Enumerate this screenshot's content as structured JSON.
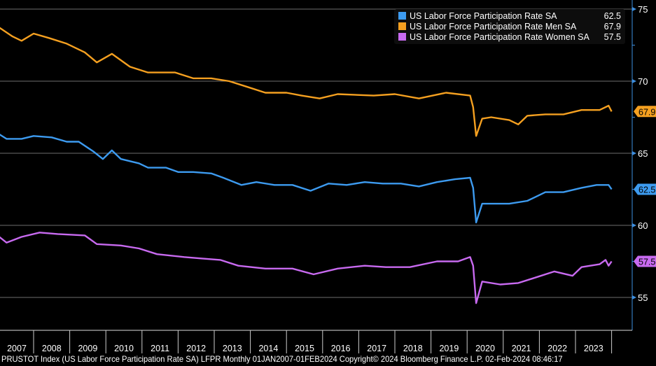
{
  "chart_data": {
    "type": "line",
    "title": "",
    "xlabel": "",
    "ylabel": "",
    "ylim": [
      52.8,
      75.6
    ],
    "y_ticks": [
      55,
      60,
      65,
      70,
      75
    ],
    "y_axis_side": "right",
    "x_tick_labels": [
      "2007",
      "2008",
      "2009",
      "2010",
      "2011",
      "2012",
      "2013",
      "2014",
      "2015",
      "2016",
      "2017",
      "2018",
      "2019",
      "2020",
      "2021",
      "2022",
      "2023"
    ],
    "grid": true,
    "legend_position": "top-right",
    "series": [
      {
        "name": "US Labor Force Participation Rate SA",
        "last_value": "62.5",
        "color": "#3d9bf0",
        "points": [
          [
            "2007-01",
            66.4
          ],
          [
            "2007-04",
            66.0
          ],
          [
            "2007-09",
            66.0
          ],
          [
            "2008-01",
            66.2
          ],
          [
            "2008-07",
            66.1
          ],
          [
            "2008-12",
            65.8
          ],
          [
            "2009-04",
            65.8
          ],
          [
            "2009-09",
            65.1
          ],
          [
            "2009-12",
            64.6
          ],
          [
            "2010-03",
            65.2
          ],
          [
            "2010-06",
            64.6
          ],
          [
            "2010-12",
            64.3
          ],
          [
            "2011-03",
            64.0
          ],
          [
            "2011-09",
            64.0
          ],
          [
            "2012-01",
            63.7
          ],
          [
            "2012-06",
            63.7
          ],
          [
            "2012-12",
            63.6
          ],
          [
            "2013-04",
            63.3
          ],
          [
            "2013-10",
            62.8
          ],
          [
            "2014-03",
            63.0
          ],
          [
            "2014-09",
            62.8
          ],
          [
            "2015-03",
            62.8
          ],
          [
            "2015-09",
            62.4
          ],
          [
            "2016-03",
            62.9
          ],
          [
            "2016-09",
            62.8
          ],
          [
            "2017-03",
            63.0
          ],
          [
            "2017-09",
            62.9
          ],
          [
            "2018-03",
            62.9
          ],
          [
            "2018-09",
            62.7
          ],
          [
            "2019-03",
            63.0
          ],
          [
            "2019-09",
            63.2
          ],
          [
            "2020-02",
            63.3
          ],
          [
            "2020-03",
            62.6
          ],
          [
            "2020-04",
            60.2
          ],
          [
            "2020-06",
            61.5
          ],
          [
            "2020-09",
            61.5
          ],
          [
            "2020-12",
            61.5
          ],
          [
            "2021-03",
            61.5
          ],
          [
            "2021-09",
            61.7
          ],
          [
            "2022-03",
            62.3
          ],
          [
            "2022-09",
            62.3
          ],
          [
            "2023-03",
            62.6
          ],
          [
            "2023-08",
            62.8
          ],
          [
            "2023-12",
            62.8
          ],
          [
            "2024-01",
            62.5
          ]
        ]
      },
      {
        "name": "US Labor Force Participation Rate Men SA",
        "last_value": "67.9",
        "color": "#f5a020",
        "points": [
          [
            "2007-01",
            73.8
          ],
          [
            "2007-06",
            73.1
          ],
          [
            "2007-09",
            72.8
          ],
          [
            "2008-01",
            73.3
          ],
          [
            "2008-06",
            73.0
          ],
          [
            "2008-12",
            72.6
          ],
          [
            "2009-06",
            72.0
          ],
          [
            "2009-10",
            71.3
          ],
          [
            "2010-03",
            71.9
          ],
          [
            "2010-09",
            71.0
          ],
          [
            "2011-03",
            70.6
          ],
          [
            "2011-12",
            70.6
          ],
          [
            "2012-06",
            70.2
          ],
          [
            "2012-12",
            70.2
          ],
          [
            "2013-06",
            70.0
          ],
          [
            "2013-12",
            69.6
          ],
          [
            "2014-06",
            69.2
          ],
          [
            "2015-01",
            69.2
          ],
          [
            "2015-06",
            69.0
          ],
          [
            "2015-12",
            68.8
          ],
          [
            "2016-06",
            69.1
          ],
          [
            "2017-06",
            69.0
          ],
          [
            "2018-01",
            69.1
          ],
          [
            "2018-09",
            68.8
          ],
          [
            "2019-06",
            69.2
          ],
          [
            "2020-02",
            69.0
          ],
          [
            "2020-03",
            68.2
          ],
          [
            "2020-04",
            66.2
          ],
          [
            "2020-06",
            67.4
          ],
          [
            "2020-09",
            67.5
          ],
          [
            "2021-03",
            67.3
          ],
          [
            "2021-06",
            67.0
          ],
          [
            "2021-09",
            67.6
          ],
          [
            "2022-03",
            67.7
          ],
          [
            "2022-09",
            67.7
          ],
          [
            "2023-03",
            68.0
          ],
          [
            "2023-09",
            68.0
          ],
          [
            "2023-12",
            68.3
          ],
          [
            "2024-01",
            67.9
          ]
        ]
      },
      {
        "name": "US Labor Force Participation Rate Women SA",
        "last_value": "57.5",
        "color": "#c86af0",
        "points": [
          [
            "2007-01",
            59.3
          ],
          [
            "2007-04",
            58.8
          ],
          [
            "2007-09",
            59.2
          ],
          [
            "2008-03",
            59.5
          ],
          [
            "2008-09",
            59.4
          ],
          [
            "2009-06",
            59.3
          ],
          [
            "2009-10",
            58.7
          ],
          [
            "2010-06",
            58.6
          ],
          [
            "2010-12",
            58.4
          ],
          [
            "2011-06",
            58.0
          ],
          [
            "2012-03",
            57.8
          ],
          [
            "2012-09",
            57.7
          ],
          [
            "2013-03",
            57.6
          ],
          [
            "2013-09",
            57.2
          ],
          [
            "2014-06",
            57.0
          ],
          [
            "2015-03",
            57.0
          ],
          [
            "2015-10",
            56.6
          ],
          [
            "2016-06",
            57.0
          ],
          [
            "2017-03",
            57.2
          ],
          [
            "2017-10",
            57.1
          ],
          [
            "2018-06",
            57.1
          ],
          [
            "2019-03",
            57.5
          ],
          [
            "2019-10",
            57.5
          ],
          [
            "2020-02",
            57.8
          ],
          [
            "2020-03",
            57.2
          ],
          [
            "2020-04",
            54.6
          ],
          [
            "2020-06",
            56.1
          ],
          [
            "2020-12",
            55.9
          ],
          [
            "2021-06",
            56.0
          ],
          [
            "2021-12",
            56.4
          ],
          [
            "2022-06",
            56.8
          ],
          [
            "2022-12",
            56.5
          ],
          [
            "2023-03",
            57.1
          ],
          [
            "2023-09",
            57.3
          ],
          [
            "2023-11",
            57.6
          ],
          [
            "2023-12",
            57.2
          ],
          [
            "2024-01",
            57.5
          ]
        ]
      }
    ]
  },
  "footer": "PRUSTOT Index (US Labor Force Participation Rate SA) LFPR  Monthly 01JAN2007-01FEB2024 Copyright© 2024 Bloomberg Finance L.P. 02-Feb-2024 08:46:17"
}
